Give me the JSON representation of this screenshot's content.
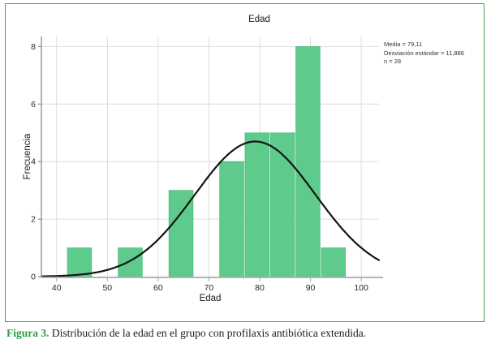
{
  "figure": {
    "caption_label": "Figura 3.",
    "caption_text": " Distribución de la edad en el grupo con profilaxis antibiótica extendida."
  },
  "chart_data": {
    "type": "bar",
    "subtype": "histogram_with_normal_curve",
    "title": "Edad",
    "xlabel": "Edad",
    "ylabel": "Frecuencia",
    "stats_lines": [
      "Media = 79,11",
      "Desviación estándar = 11,886",
      "n = 28"
    ],
    "stats": {
      "media": 79.11,
      "desviacion_estandar": 11.886,
      "n": 28
    },
    "bin_width": 5,
    "bins": [
      {
        "x0": 42,
        "x1": 47,
        "count": 1
      },
      {
        "x0": 47,
        "x1": 52,
        "count": 0
      },
      {
        "x0": 52,
        "x1": 57,
        "count": 1
      },
      {
        "x0": 57,
        "x1": 62,
        "count": 0
      },
      {
        "x0": 62,
        "x1": 67,
        "count": 3
      },
      {
        "x0": 67,
        "x1": 72,
        "count": 0
      },
      {
        "x0": 72,
        "x1": 77,
        "count": 4
      },
      {
        "x0": 77,
        "x1": 82,
        "count": 5
      },
      {
        "x0": 82,
        "x1": 87,
        "count": 5
      },
      {
        "x0": 87,
        "x1": 92,
        "count": 8
      },
      {
        "x0": 92,
        "x1": 97,
        "count": 1
      }
    ],
    "x_ticks": [
      40,
      50,
      60,
      70,
      80,
      90,
      100
    ],
    "y_ticks": [
      0,
      2,
      4,
      6,
      8
    ],
    "xlim": [
      37,
      103.5
    ],
    "ylim": [
      0,
      8.35
    ],
    "grid": true,
    "legend": false,
    "normal_curve": {
      "mean": 79.11,
      "sd": 11.886,
      "n": 28
    },
    "colors": {
      "bar_fill": "#5ecb8c",
      "bar_edge": "#4fbd80",
      "curve": "#141414",
      "grid": "#dcdcdc",
      "y_axis": "#8a8a8a",
      "x_axis": "#b3b3b3",
      "panel_border": "#4aa34f",
      "caption_accent": "#2f9e41",
      "tick_text": "#262626"
    }
  }
}
